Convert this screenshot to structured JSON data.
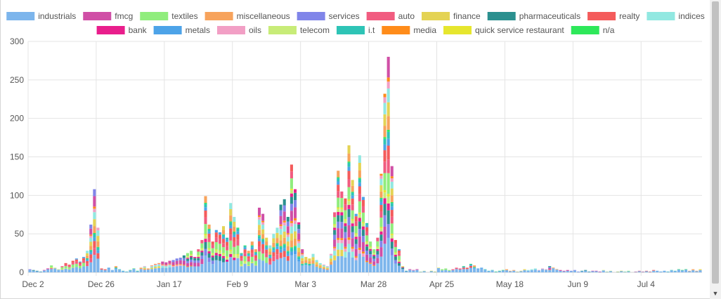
{
  "chart_data": {
    "type": "bar",
    "stacked": true,
    "x_tick_labels": [
      "Dec 2",
      "Dec 26",
      "Jan 17",
      "Feb 9",
      "Mar 3",
      "Mar 28",
      "Apr 25",
      "May 18",
      "Jun 9",
      "Jul 4"
    ],
    "x_tick_index": [
      0,
      19,
      38,
      57,
      76,
      95,
      114,
      133,
      152,
      171
    ],
    "ylim": [
      0,
      300
    ],
    "yticks": [
      0,
      50,
      100,
      150,
      200,
      250,
      300
    ],
    "grid": true,
    "legend_position": "top",
    "series": [
      {
        "name": "industrials",
        "color": "#7cb5ec"
      },
      {
        "name": "fmcg",
        "color": "#d04fa6"
      },
      {
        "name": "textiles",
        "color": "#90ed7d"
      },
      {
        "name": "miscellaneous",
        "color": "#f7a35c"
      },
      {
        "name": "services",
        "color": "#8085e9"
      },
      {
        "name": "auto",
        "color": "#f15c80"
      },
      {
        "name": "finance",
        "color": "#e4d354"
      },
      {
        "name": "pharmaceuticals",
        "color": "#2b908f"
      },
      {
        "name": "realty",
        "color": "#f45b5b"
      },
      {
        "name": "indices",
        "color": "#91e8e1"
      },
      {
        "name": "bank",
        "color": "#e91e8c"
      },
      {
        "name": "metals",
        "color": "#4da3e8"
      },
      {
        "name": "oils",
        "color": "#f29fc5"
      },
      {
        "name": "telecom",
        "color": "#c8ec78"
      },
      {
        "name": "i.t",
        "color": "#2ec4b6"
      },
      {
        "name": "media",
        "color": "#ff8c1a"
      },
      {
        "name": "quick service restaurant",
        "color": "#e6e62e"
      },
      {
        "name": "n/a",
        "color": "#2ee85a"
      }
    ],
    "totals": [
      4,
      3,
      2,
      1,
      3,
      5,
      9,
      6,
      4,
      8,
      12,
      10,
      15,
      18,
      14,
      20,
      28,
      62,
      108,
      58,
      5,
      4,
      6,
      3,
      8,
      4,
      2,
      1,
      3,
      5,
      2,
      6,
      8,
      5,
      9,
      11,
      12,
      14,
      13,
      15,
      16,
      18,
      19,
      22,
      25,
      28,
      20,
      30,
      42,
      99,
      62,
      40,
      55,
      52,
      60,
      45,
      90,
      72,
      58,
      25,
      35,
      28,
      40,
      30,
      84,
      76,
      45,
      35,
      50,
      58,
      88,
      95,
      72,
      140,
      108,
      65,
      30,
      20,
      18,
      24,
      16,
      12,
      10,
      8,
      24,
      78,
      132,
      105,
      96,
      165,
      120,
      76,
      152,
      98,
      64,
      40,
      30,
      45,
      128,
      232,
      280,
      138,
      42,
      30,
      8,
      2,
      4,
      3,
      4,
      1,
      2,
      0,
      2,
      1,
      6,
      4,
      5,
      3,
      4,
      6,
      5,
      8,
      6,
      11,
      9,
      5,
      6,
      4,
      2,
      3,
      1,
      2,
      3,
      4,
      2,
      3,
      1,
      2,
      4,
      3,
      4,
      5,
      3,
      5,
      4,
      8,
      6,
      4,
      3,
      2,
      3,
      2,
      3,
      1,
      2,
      3,
      1,
      2,
      2,
      1,
      3,
      1,
      2,
      0,
      1,
      2,
      1,
      2,
      0,
      1,
      2,
      1,
      2,
      1,
      3,
      2,
      1,
      2,
      1,
      3,
      2,
      4,
      3,
      4,
      2,
      4,
      2,
      4
    ]
  }
}
